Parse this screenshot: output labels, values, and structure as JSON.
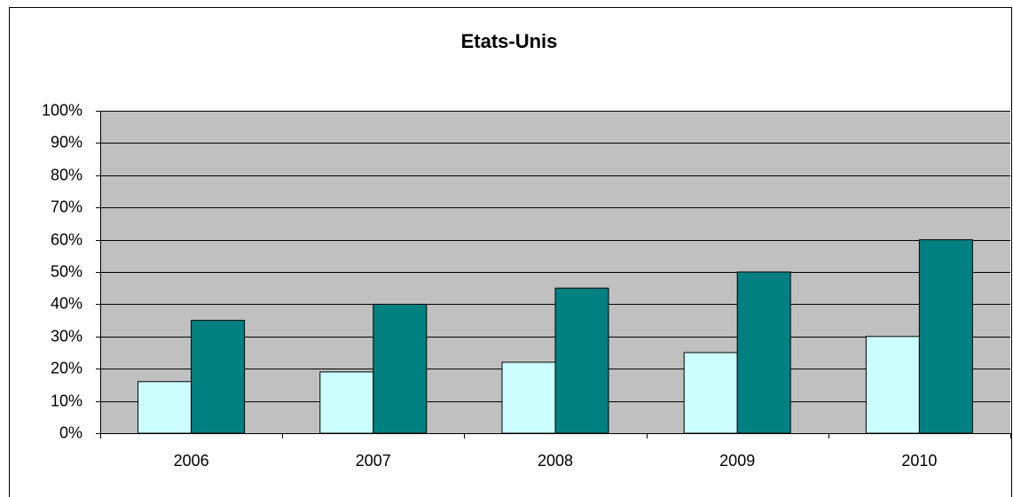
{
  "chart_data": {
    "type": "bar",
    "title": "Etats-Unis",
    "categories": [
      "2006",
      "2007",
      "2008",
      "2009",
      "2010"
    ],
    "series": [
      {
        "color": "#ccffff",
        "values": [
          16,
          19,
          22,
          25,
          30
        ]
      },
      {
        "color": "#008080",
        "values": [
          35,
          40,
          45,
          50,
          60
        ]
      }
    ],
    "ylim": [
      0,
      100
    ],
    "yticks": [
      {
        "value": 0,
        "label": "0%"
      },
      {
        "value": 10,
        "label": "10%"
      },
      {
        "value": 20,
        "label": "20%"
      },
      {
        "value": 30,
        "label": "30%"
      },
      {
        "value": 40,
        "label": "40%"
      },
      {
        "value": 50,
        "label": "50%"
      },
      {
        "value": 60,
        "label": "60%"
      },
      {
        "value": 70,
        "label": "70%"
      },
      {
        "value": 80,
        "label": "80%"
      },
      {
        "value": 90,
        "label": "90%"
      },
      {
        "value": 100,
        "label": "100%"
      }
    ],
    "grid": true
  }
}
